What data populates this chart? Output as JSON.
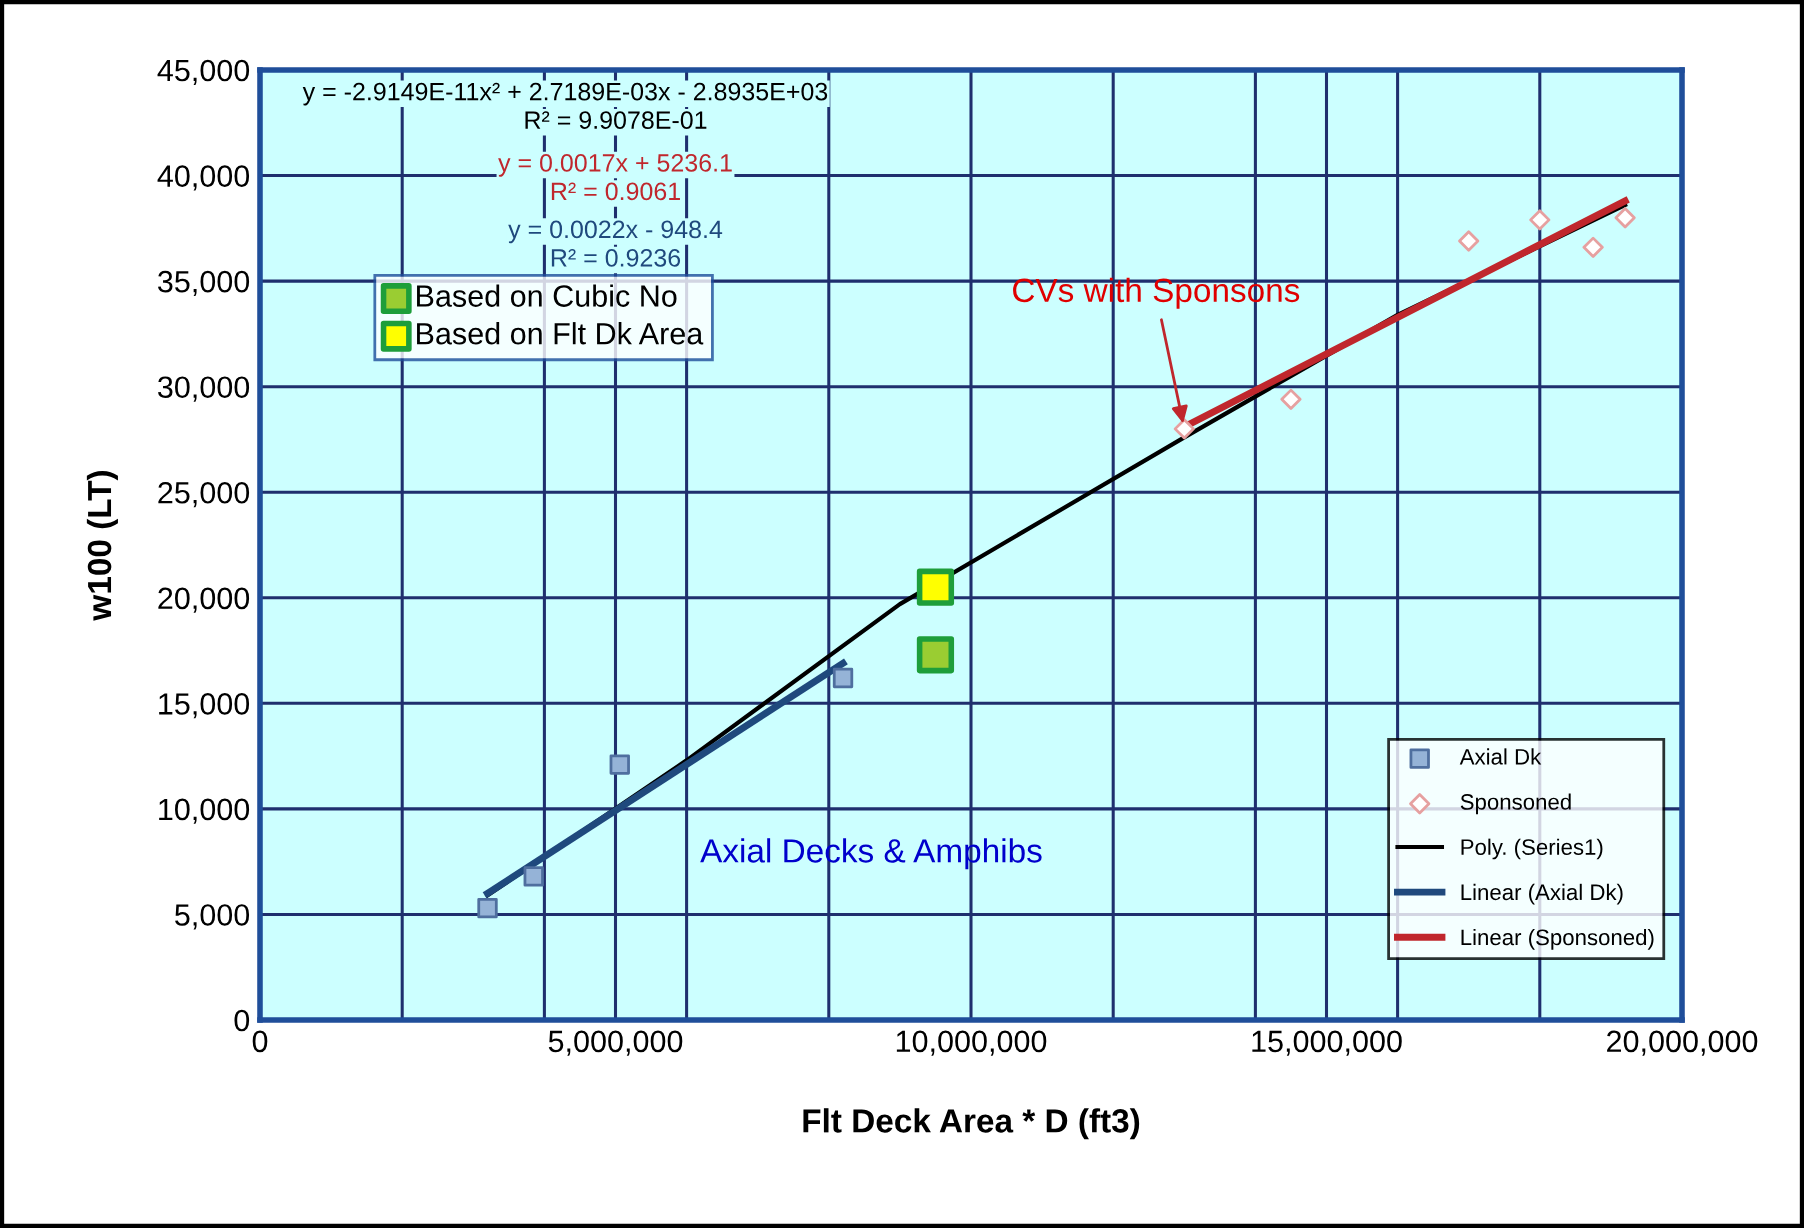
{
  "chart_data": {
    "type": "scatter",
    "xlabel": "Flt Deck Area * D (ft3)",
    "ylabel": "w100 (LT)",
    "xlim": [
      0,
      20000000
    ],
    "ylim": [
      0,
      45000
    ],
    "xticks": [
      0,
      {
        "value": 2000000,
        "label": null
      },
      {
        "value": 4000000,
        "label": null
      },
      {
        "value": 5000000,
        "label": "5,000,000"
      },
      {
        "value": 6000000,
        "label": null
      },
      {
        "value": 8000000,
        "label": null
      },
      {
        "value": 10000000,
        "label": "10,000,000"
      },
      {
        "value": 12000000,
        "label": null
      },
      {
        "value": 14000000,
        "label": null
      },
      {
        "value": 15000000,
        "label": "15,000,000"
      },
      {
        "value": 16000000,
        "label": null
      },
      {
        "value": 18000000,
        "label": null
      },
      {
        "value": 20000000,
        "label": "20,000,000"
      }
    ],
    "yticks": [
      0,
      {
        "value": 5000,
        "label": "5,000"
      },
      {
        "value": 10000,
        "label": "10,000"
      },
      {
        "value": 15000,
        "label": "15,000"
      },
      {
        "value": 20000,
        "label": "20,000"
      },
      {
        "value": 25000,
        "label": "25,000"
      },
      {
        "value": 30000,
        "label": "30,000"
      },
      {
        "value": 35000,
        "label": "35,000"
      },
      {
        "value": 40000,
        "label": "40,000"
      },
      {
        "value": 45000,
        "label": "45,000"
      }
    ],
    "grid": true,
    "legend": "bottom right",
    "series": [
      {
        "name": "Axial Dk",
        "marker": "square",
        "color": "#95b3d7",
        "x": [
          3200000,
          3850000,
          5060000,
          8200000
        ],
        "values": [
          5300,
          6800,
          12100,
          16200
        ]
      },
      {
        "name": "Sponsoned",
        "marker": "diamond",
        "color": "#e6a0a0",
        "x": [
          13000000,
          14500000,
          17000000,
          18000000,
          18750000,
          19200000
        ],
        "values": [
          28000,
          29400,
          36900,
          37900,
          36600,
          38000
        ]
      },
      {
        "name": "Poly. (Series1)",
        "type": "line",
        "marker": "none",
        "color": "#000000",
        "x": [
          3200000,
          6000000,
          9000000,
          13000000,
          16000000,
          19200000
        ],
        "values": [
          5900,
          12300,
          19700,
          27600,
          33400,
          38600
        ]
      },
      {
        "name": "Linear (Axial Dk)",
        "type": "line",
        "marker": "none",
        "color": "#1f497d",
        "x": [
          3200000,
          8200000
        ],
        "values": [
          6000,
          16900
        ]
      },
      {
        "name": "Linear (Sponsoned)",
        "type": "line",
        "marker": "none",
        "color": "#c0272d",
        "x": [
          13000000,
          19200000
        ],
        "values": [
          28100,
          38800
        ]
      },
      {
        "name": "Based on Cubic No",
        "marker": "square",
        "color": "#9acd32",
        "x": [
          9500000
        ],
        "values": [
          17300
        ]
      },
      {
        "name": "Based on Flt Dk Area",
        "marker": "square",
        "color": "#ffff00",
        "x": [
          9500000
        ],
        "values": [
          20500
        ]
      }
    ],
    "annotations": [
      "y = -2.9149E-11x² + 2.7189E-03x - 2.8935E+03",
      "R² = 9.9078E-01",
      "y = 0.0017x + 5236.1",
      "R² = 0.9061",
      "y = 0.0022x - 948.4",
      "R² = 0.9236",
      {
        "text": "CVs with Sponsons",
        "x": 13000000,
        "y": 28000
      },
      "Axial Decks & Amphibs"
    ]
  }
}
